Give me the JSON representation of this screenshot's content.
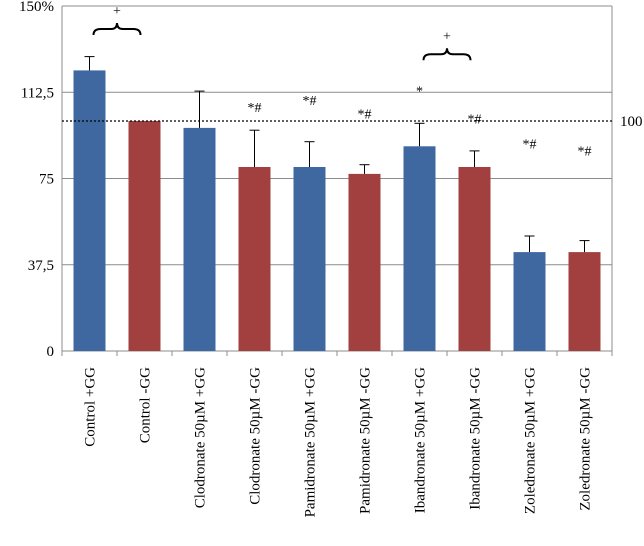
{
  "chart_data": {
    "type": "bar",
    "title": "",
    "xlabel": "",
    "ylabel": "",
    "ylim": [
      0,
      150
    ],
    "yticks": [
      0,
      37.5,
      75,
      112.5,
      150
    ],
    "ytick_labels": [
      "0",
      "37,5",
      "75",
      "112,5",
      "150%"
    ],
    "grid": true,
    "categories": [
      "Control +GG",
      "Control -GG",
      "Clodronate 50µM +GG",
      "Clodronate 50µM -GG",
      "Pamidronate 50µM +GG",
      "Pamidronate 50µM -GG",
      "Ibandronate 50µM +GG",
      "Ibandronate 50µM -GG",
      "Zoledronate 50µM +GG",
      "Zoledronate 50µM -GG"
    ],
    "values": [
      122,
      100,
      97,
      80,
      80,
      77,
      89,
      80,
      43,
      43
    ],
    "error_upper": [
      128,
      100,
      113,
      96,
      91,
      81,
      99,
      87,
      50,
      48
    ],
    "colors": [
      "#3f68a1",
      "#a23f3f",
      "#3f68a1",
      "#a23f3f",
      "#3f68a1",
      "#a23f3f",
      "#3f68a1",
      "#a23f3f",
      "#3f68a1",
      "#a23f3f"
    ],
    "reference_line": {
      "value": 100,
      "label": "100"
    },
    "annotations": [
      {
        "text": "+",
        "category_index": 0.5,
        "value": 146
      },
      {
        "text": "*#",
        "category_index": 3,
        "value": 104
      },
      {
        "text": "*#",
        "category_index": 4,
        "value": 107
      },
      {
        "text": "*#",
        "category_index": 5,
        "value": 101
      },
      {
        "text": "*",
        "category_index": 6,
        "value": 111
      },
      {
        "text": "+",
        "category_index": 6.5,
        "value": 135
      },
      {
        "text": "*#",
        "category_index": 7,
        "value": 99
      },
      {
        "text": "*#",
        "category_index": 8,
        "value": 88
      },
      {
        "text": "*#",
        "category_index": 9,
        "value": 85
      }
    ],
    "brackets": [
      {
        "from_index": 0,
        "to_index": 1,
        "value": 140
      },
      {
        "from_index": 6,
        "to_index": 7,
        "value": 129
      }
    ]
  }
}
